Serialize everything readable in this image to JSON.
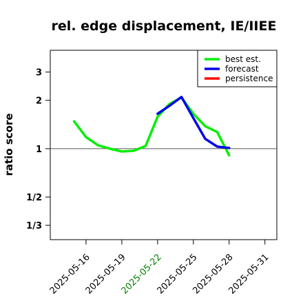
{
  "chart_data": {
    "type": "line",
    "title": "rel. edge displacement, IE/IIEE",
    "ylabel": "ratio score",
    "yscale": "log",
    "ylim": [
      0.2713,
      4.1
    ],
    "xlim": [
      "2025-05-13",
      "2025-06-01"
    ],
    "grid": false,
    "legend_position": "top-right",
    "reference_line": 1,
    "y_ticks": [
      {
        "value": 3,
        "label": "3"
      },
      {
        "value": 2,
        "label": "2"
      },
      {
        "value": 1,
        "label": "1"
      },
      {
        "value": 0.5,
        "label": "1/2"
      },
      {
        "value": 0.3333,
        "label": "1/3"
      }
    ],
    "x_ticks": [
      {
        "date": "2025-05-16",
        "label": "2025-05-16",
        "color": "#000000"
      },
      {
        "date": "2025-05-19",
        "label": "2025-05-19",
        "color": "#000000"
      },
      {
        "date": "2025-05-22",
        "label": "2025-05-22",
        "color": "#008000"
      },
      {
        "date": "2025-05-25",
        "label": "2025-05-25",
        "color": "#000000"
      },
      {
        "date": "2025-05-28",
        "label": "2025-05-28",
        "color": "#000000"
      },
      {
        "date": "2025-05-31",
        "label": "2025-05-31",
        "color": "#000000"
      }
    ],
    "series": [
      {
        "name": "best est.",
        "color": "#00ee00",
        "points": [
          [
            "2025-05-15",
            1.48
          ],
          [
            "2025-05-16",
            1.18
          ],
          [
            "2025-05-17",
            1.05
          ],
          [
            "2025-05-18",
            1.0
          ],
          [
            "2025-05-19",
            0.96
          ],
          [
            "2025-05-20",
            0.97
          ],
          [
            "2025-05-21",
            1.04
          ],
          [
            "2025-05-22",
            1.58
          ],
          [
            "2025-05-23",
            1.9
          ],
          [
            "2025-05-24",
            2.08
          ],
          [
            "2025-05-25",
            1.65
          ],
          [
            "2025-05-26",
            1.38
          ],
          [
            "2025-05-27",
            1.27
          ],
          [
            "2025-05-28",
            0.91
          ]
        ]
      },
      {
        "name": "forecast",
        "color": "#0000ee",
        "points": [
          [
            "2025-05-22",
            1.65
          ],
          [
            "2025-05-23",
            1.85
          ],
          [
            "2025-05-24",
            2.1
          ],
          [
            "2025-05-25",
            1.55
          ],
          [
            "2025-05-26",
            1.15
          ],
          [
            "2025-05-27",
            1.03
          ],
          [
            "2025-05-28",
            1.01
          ]
        ]
      },
      {
        "name": "persistence",
        "color": "#ff0000",
        "points": []
      }
    ]
  }
}
